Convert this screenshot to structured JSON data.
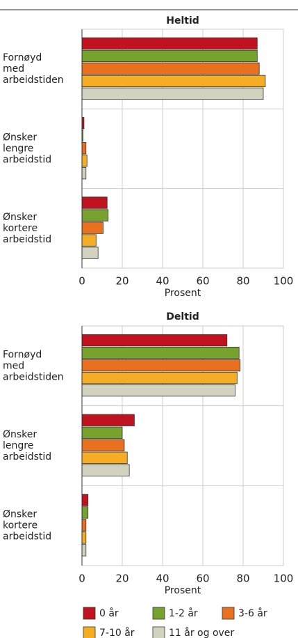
{
  "chart_data": [
    {
      "type": "bar",
      "orientation": "horizontal",
      "title": "Heltid",
      "xlabel": "Prosent",
      "categories": [
        [
          "Fornøyd",
          "med",
          "arbeidstiden"
        ],
        [
          "Ønsker",
          "lengre",
          "arbeidstid"
        ],
        [
          "Ønsker",
          "kortere",
          "arbeidstid"
        ]
      ],
      "series": [
        {
          "name": "0 år",
          "color": "#c0131f",
          "values": [
            87,
            1,
            12.5
          ]
        },
        {
          "name": "1-2 år",
          "color": "#77a22e",
          "values": [
            87,
            0.5,
            13
          ]
        },
        {
          "name": "3-6 år",
          "color": "#e8701f",
          "values": [
            88,
            2,
            10.5
          ]
        },
        {
          "name": "7-10 år",
          "color": "#f5ad25",
          "values": [
            91,
            2.5,
            7
          ]
        },
        {
          "name": "11 år og over",
          "color": "#d2d3be",
          "values": [
            90,
            2,
            8
          ]
        }
      ],
      "xlim": [
        0,
        100
      ],
      "xticks": [
        0,
        20,
        40,
        60,
        80,
        100
      ],
      "grid": true
    },
    {
      "type": "bar",
      "orientation": "horizontal",
      "title": "Deltid",
      "xlabel": "Prosent",
      "categories": [
        [
          "Fornøyd",
          "med",
          "arbeidstiden"
        ],
        [
          "Ønsker",
          "lengre",
          "arbeidstid"
        ],
        [
          "Ønsker",
          "kortere",
          "arbeidstid"
        ]
      ],
      "series": [
        {
          "name": "0 år",
          "color": "#c0131f",
          "values": [
            72,
            26,
            3
          ]
        },
        {
          "name": "1-2 år",
          "color": "#77a22e",
          "values": [
            78,
            20,
            3
          ]
        },
        {
          "name": "3-6 år",
          "color": "#e8701f",
          "values": [
            78.5,
            21,
            2
          ]
        },
        {
          "name": "7-10 år",
          "color": "#f5ad25",
          "values": [
            77,
            22.5,
            2
          ]
        },
        {
          "name": "11 år og over",
          "color": "#d2d3be",
          "values": [
            76,
            23.5,
            2
          ]
        }
      ],
      "xlim": [
        0,
        100
      ],
      "xticks": [
        0,
        20,
        40,
        60,
        80,
        100
      ],
      "grid": true
    }
  ]
}
